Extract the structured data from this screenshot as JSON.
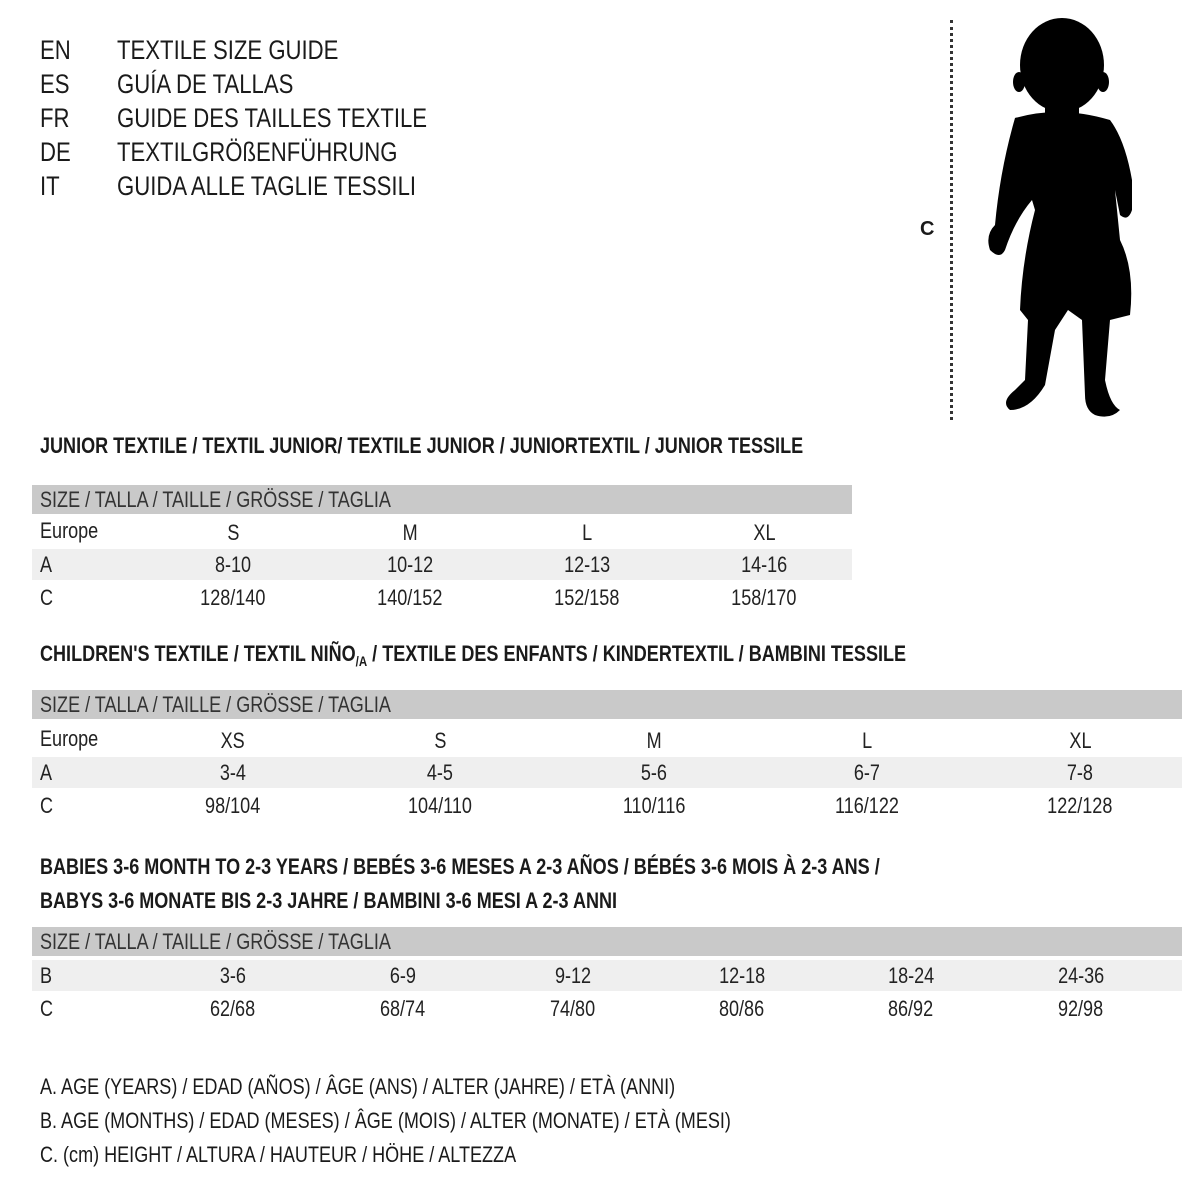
{
  "languages": [
    {
      "code": "EN",
      "title": "TEXTILE SIZE GUIDE"
    },
    {
      "code": "ES",
      "title": "GUÍA DE TALLAS"
    },
    {
      "code": "FR",
      "title": "GUIDE DES TAILLES TEXTILE"
    },
    {
      "code": "DE",
      "title": "TEXTILGRÖßENFÜHRUNG"
    },
    {
      "code": "IT",
      "title": "GUIDA ALLE TAGLIE TESSILI"
    }
  ],
  "figure": {
    "measure_label": "C"
  },
  "size_header": "SIZE / TALLA / TAILLE / GRÖSSE / TAGLIA",
  "junior": {
    "title": "JUNIOR TEXTILE / TEXTIL JUNIOR/ TEXTILE JUNIOR / JUNIORTEXTIL / JUNIOR TESSILE",
    "rows": [
      {
        "label": "Europe",
        "values": [
          "S",
          "M",
          "L",
          "XL"
        ]
      },
      {
        "label": "A",
        "values": [
          "8-10",
          "10-12",
          "12-13",
          "14-16"
        ]
      },
      {
        "label": "C",
        "values": [
          "128/140",
          "140/152",
          "152/158",
          "158/170"
        ]
      }
    ]
  },
  "children": {
    "title_pre": "CHILDREN'S TEXTILE / TEXTIL NIÑO",
    "title_sub": "/A",
    "title_post": " / TEXTILE DES ENFANTS / KINDERTEXTIL / BAMBINI TESSILE",
    "rows": [
      {
        "label": "Europe",
        "values": [
          "XS",
          "S",
          "M",
          "L",
          "XL"
        ]
      },
      {
        "label": "A",
        "values": [
          "3-4",
          "4-5",
          "5-6",
          "6-7",
          "7-8"
        ]
      },
      {
        "label": "C",
        "values": [
          "98/104",
          "104/110",
          "110/116",
          "116/122",
          "122/128"
        ]
      }
    ]
  },
  "babies": {
    "title_line1": "BABIES 3-6 MONTH TO 2-3 YEARS / BEBÉS 3-6 MESES A 2-3 AÑOS / BÉBÉS 3-6 MOIS À 2-3 ANS /",
    "title_line2": "BABYS 3-6 MONATE BIS 2-3 JAHRE / BAMBINI 3-6 MESI A 2-3 ANNI",
    "rows": [
      {
        "label": "B",
        "values": [
          "3-6",
          "6-9",
          "9-12",
          "12-18",
          "18-24",
          "24-36"
        ]
      },
      {
        "label": "C",
        "values": [
          "62/68",
          "68/74",
          "74/80",
          "80/86",
          "86/92",
          "92/98"
        ]
      }
    ]
  },
  "legend": [
    "A. AGE (YEARS) / EDAD (AÑOS) / ÂGE (ANS) / ALTER (JAHRE) / ETÀ (ANNI)",
    "B. AGE (MONTHS) / EDAD (MESES) / ÂGE (MOIS) / ALTER (MONATE) / ETÀ (MESI)",
    "C. (cm) HEIGHT / ALTURA / HAUTEUR / HÖHE / ALTEZZA"
  ],
  "colors": {
    "header_bar": "#c9c9c9",
    "band": "#efefef",
    "text": "#1a1a1a"
  }
}
